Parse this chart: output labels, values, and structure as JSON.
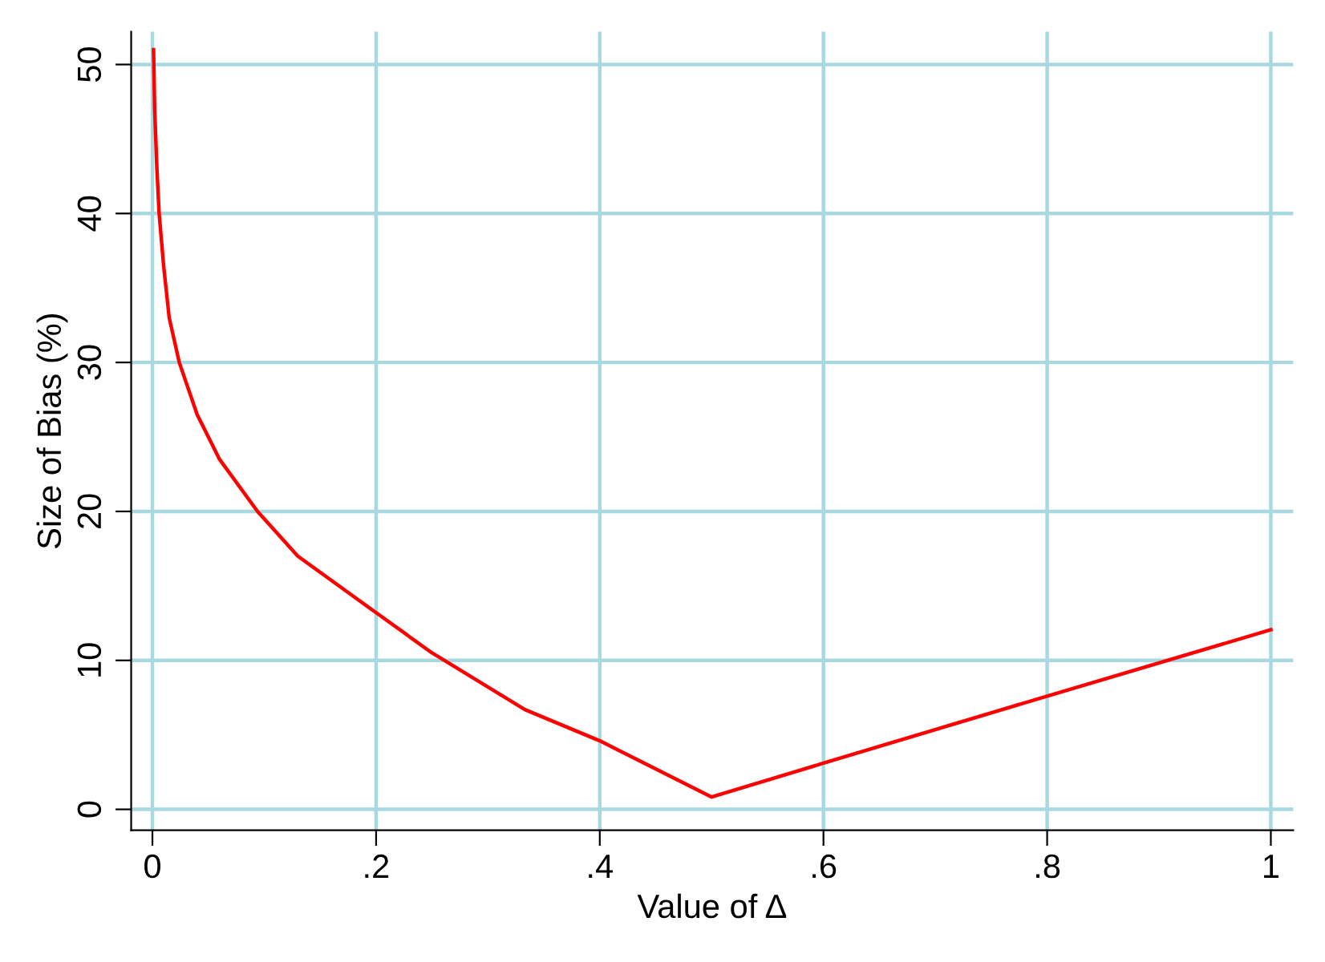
{
  "chart_data": {
    "type": "line",
    "xlabel": "Value of Δ",
    "ylabel": "Size of Bias (%)",
    "x": [
      0.001,
      0.002,
      0.004,
      0.006,
      0.01,
      0.015,
      0.024,
      0.04,
      0.06,
      0.094,
      0.13,
      0.2,
      0.25,
      0.333,
      0.4,
      0.5,
      0.6,
      0.8,
      1
    ],
    "series": [
      {
        "color": "#ff0000",
        "values": [
          51,
          47,
          43,
          40,
          36.5,
          33,
          30,
          26.5,
          23.5,
          20,
          17,
          13.2,
          10.5,
          6.7,
          4.6,
          0.83,
          3.1,
          7.6,
          12.06
        ]
      }
    ],
    "xlim": [
      -0.019,
      1.02
    ],
    "ylim": [
      -1.4,
      52.2
    ],
    "xticks": [
      0,
      {
        "value": 0.2,
        "label": ".2"
      },
      {
        "value": 0.4,
        "label": ".4"
      },
      {
        "value": 0.6,
        "label": ".6"
      },
      {
        "value": 0.8,
        "label": ".8"
      },
      1
    ],
    "yticks": [
      0,
      10,
      20,
      30,
      40,
      50
    ],
    "grid": true,
    "marker": "none",
    "line_style": "solid"
  }
}
